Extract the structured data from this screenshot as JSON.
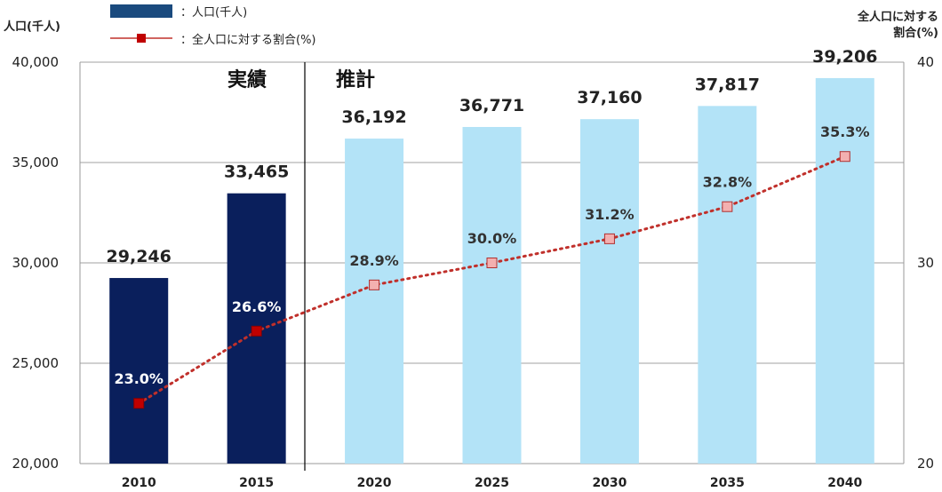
{
  "chart_data": {
    "type": "bar",
    "categories": [
      "2010",
      "2015",
      "2020",
      "2025",
      "2030",
      "2035",
      "2040"
    ],
    "series": [
      {
        "name": "：人口(千人)",
        "kind": "bar",
        "axis": "left",
        "values": [
          29246,
          33465,
          36192,
          36771,
          37160,
          37817,
          39206
        ],
        "labels": [
          "29,246",
          "33,465",
          "36,192",
          "36,771",
          "37,160",
          "37,817",
          "39,206"
        ],
        "colors": [
          "#0a1f5c",
          "#0a1f5c",
          "#b3e3f7",
          "#b3e3f7",
          "#b3e3f7",
          "#b3e3f7",
          "#b3e3f7"
        ]
      },
      {
        "name": "：全人口に対する割合(%)",
        "kind": "line",
        "axis": "right",
        "values": [
          23.0,
          26.6,
          28.9,
          30.0,
          31.2,
          32.8,
          35.3
        ],
        "labels": [
          "23.0%",
          "26.6%",
          "28.9%",
          "30.0%",
          "31.2%",
          "32.8%",
          "35.3%"
        ],
        "color": "#c0302b"
      }
    ],
    "ylabel_left": "人口(千人)",
    "ylabel_right": [
      "全人口に対する",
      "割合(%)"
    ],
    "ylim_left": [
      20000,
      40000
    ],
    "yticks_left": [
      "20,000",
      "25,000",
      "30,000",
      "35,000",
      "40,000"
    ],
    "ylim_right": [
      20,
      40
    ],
    "yticks_right": [
      "20",
      "30",
      "40"
    ],
    "grid": true,
    "legend_position": "top-left",
    "annotations": [
      "実績",
      "推計"
    ],
    "divider_after_category": "2015"
  }
}
